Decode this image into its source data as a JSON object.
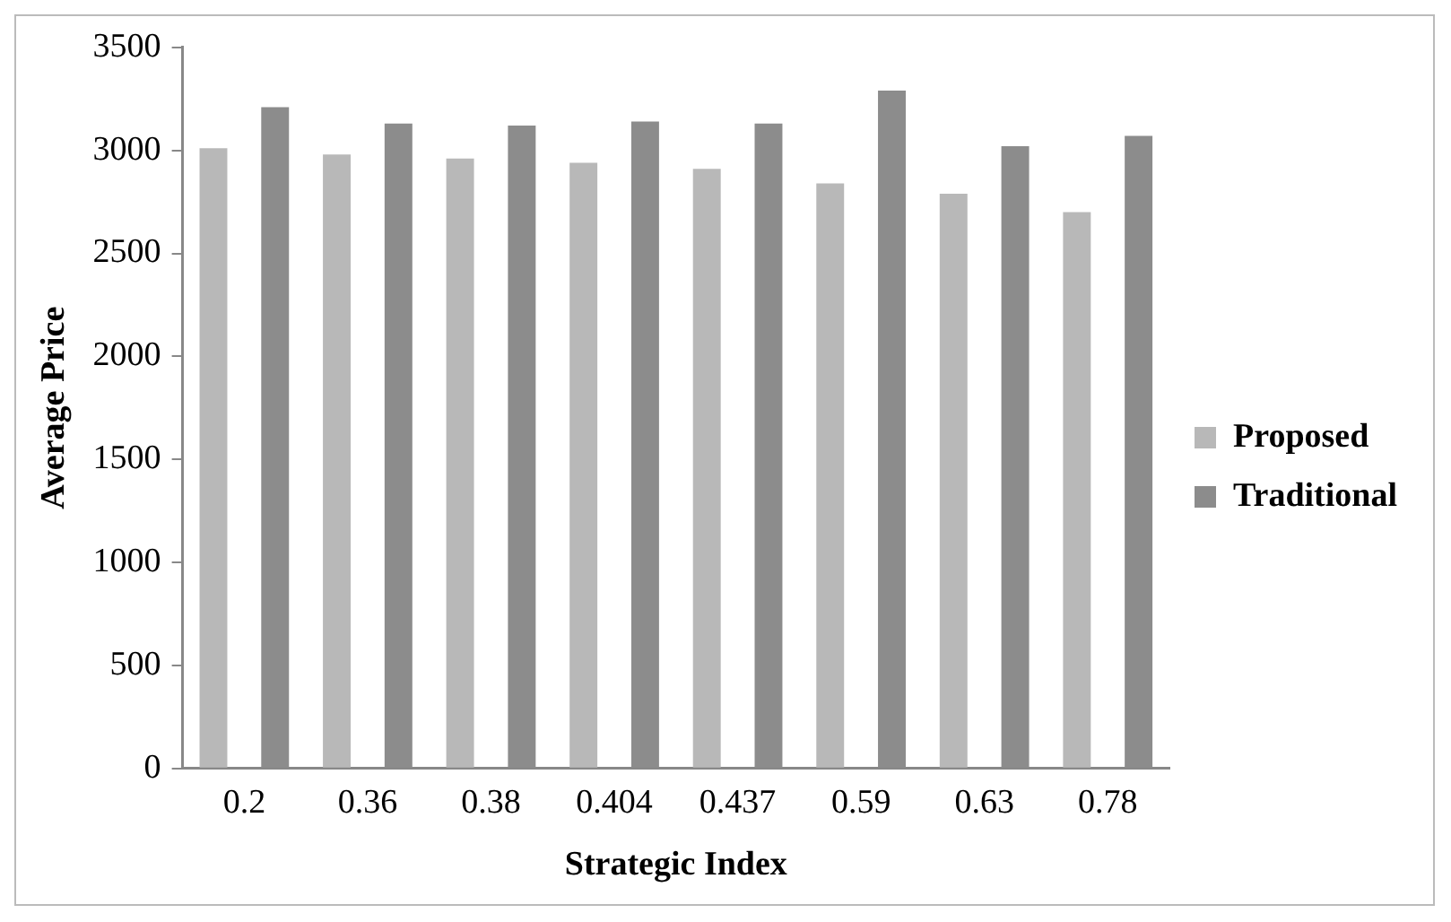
{
  "chart_data": {
    "type": "bar",
    "xlabel": "Strategic Index",
    "ylabel": "Average Price",
    "categories": [
      "0.2",
      "0.36",
      "0.38",
      "0.404",
      "0.437",
      "0.59",
      "0.63",
      "0.78"
    ],
    "series": [
      {
        "name": "Proposed",
        "color": "#b8b8b8",
        "values": [
          3010,
          2980,
          2960,
          2940,
          2910,
          2840,
          2790,
          2700
        ]
      },
      {
        "name": "Traditional",
        "color": "#8c8c8c",
        "values": [
          3210,
          3130,
          3120,
          3140,
          3130,
          3290,
          3020,
          3070
        ]
      }
    ],
    "ylim": [
      0,
      3500
    ],
    "yticks": [
      0,
      500,
      1000,
      1500,
      2000,
      2500,
      3000,
      3500
    ],
    "grid": false,
    "legend": "right"
  }
}
